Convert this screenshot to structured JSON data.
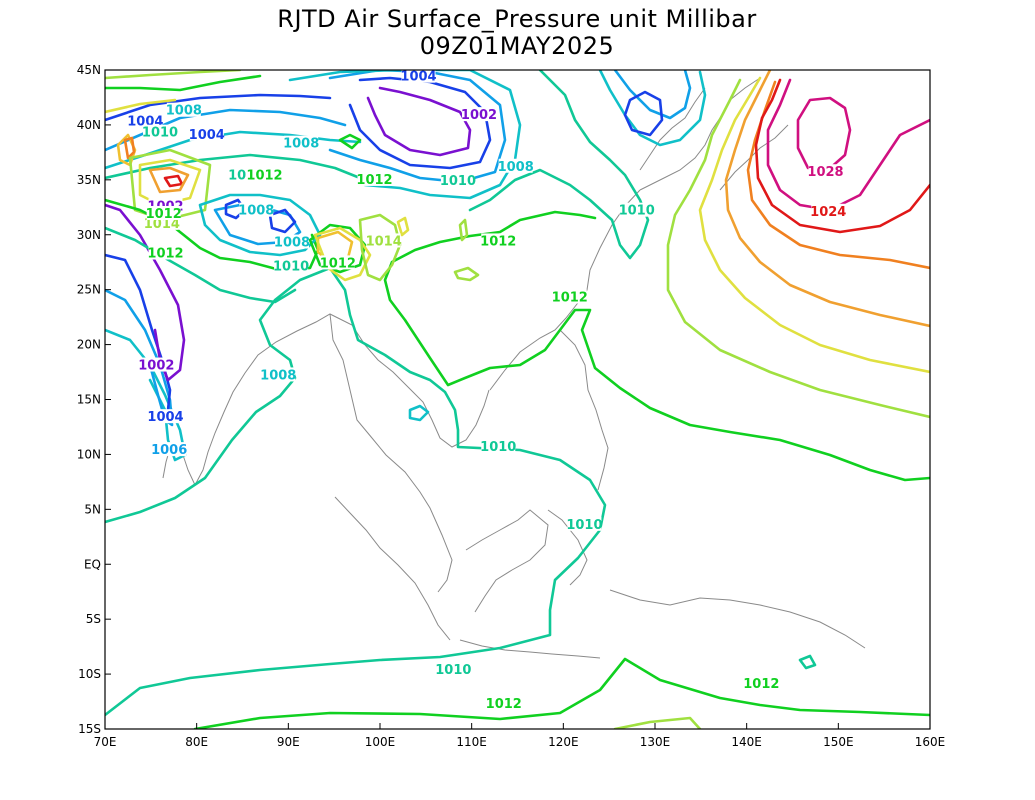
{
  "title": {
    "line1": "RJTD Air Surface_Pressure unit Millibar",
    "line2": "09Z01MAY2025"
  },
  "axes": {
    "x_ticks": [
      "70E",
      "80E",
      "90E",
      "100E",
      "110E",
      "120E",
      "130E",
      "140E",
      "150E",
      "160E"
    ],
    "y_ticks": [
      "45N",
      "40N",
      "35N",
      "30N",
      "25N",
      "20N",
      "15N",
      "10N",
      "5N",
      "EQ",
      "5S",
      "10S",
      "15S"
    ],
    "lon_range": [
      70,
      160
    ],
    "lat_range": [
      -15,
      45
    ]
  },
  "contour_colors": {
    "1002": "#7a10d0",
    "1004": "#1840e8",
    "1006": "#10a0e8",
    "1008": "#10c0c8",
    "1010": "#10c896",
    "1012": "#10d020",
    "1014": "#a0e040",
    "1016": "#e0e040",
    "1018": "#f0c030",
    "1020": "#f0a030",
    "1022": "#f08020",
    "1024": "#e01818",
    "1026": "#e01060",
    "1028": "#d01080"
  },
  "contour_labels": [
    {
      "text": "1004",
      "lon": 81.1,
      "lat": 39.0,
      "level": "1004"
    },
    {
      "text": "1004",
      "lon": 74.4,
      "lat": 40.2,
      "level": "1004"
    },
    {
      "text": "1002",
      "lon": 76.6,
      "lat": 32.5,
      "level": "1002"
    },
    {
      "text": "1014",
      "lon": 76.2,
      "lat": 30.9,
      "level": "1014"
    },
    {
      "text": "1012",
      "lon": 76.4,
      "lat": 31.8,
      "level": "1012"
    },
    {
      "text": "1012",
      "lon": 76.6,
      "lat": 28.2,
      "level": "1012"
    },
    {
      "text": "1010",
      "lon": 76.0,
      "lat": 39.2,
      "level": "1010"
    },
    {
      "text": "1008",
      "lon": 78.6,
      "lat": 41.2,
      "level": "1008"
    },
    {
      "text": "1002",
      "lon": 110.8,
      "lat": 40.8,
      "level": "1002"
    },
    {
      "text": "1004",
      "lon": 104.2,
      "lat": 44.3,
      "level": "1004"
    },
    {
      "text": "1008",
      "lon": 91.4,
      "lat": 38.2,
      "level": "1008"
    },
    {
      "text": "1010",
      "lon": 85.4,
      "lat": 35.3,
      "level": "1010"
    },
    {
      "text": "1012",
      "lon": 87.4,
      "lat": 35.3,
      "level": "1012"
    },
    {
      "text": "1012",
      "lon": 99.4,
      "lat": 34.9,
      "level": "1012"
    },
    {
      "text": "1010",
      "lon": 108.5,
      "lat": 34.8,
      "level": "1010"
    },
    {
      "text": "1008",
      "lon": 114.8,
      "lat": 36.1,
      "level": "1008"
    },
    {
      "text": "1008",
      "lon": 86.5,
      "lat": 32.1,
      "level": "1008"
    },
    {
      "text": "1008",
      "lon": 90.4,
      "lat": 29.2,
      "level": "1008"
    },
    {
      "text": "1010",
      "lon": 90.3,
      "lat": 27.0,
      "level": "1010"
    },
    {
      "text": "1012",
      "lon": 95.4,
      "lat": 27.3,
      "level": "1012"
    },
    {
      "text": "1014",
      "lon": 100.4,
      "lat": 29.3,
      "level": "1014"
    },
    {
      "text": "1012",
      "lon": 112.9,
      "lat": 29.3,
      "level": "1012"
    },
    {
      "text": "1010",
      "lon": 128.0,
      "lat": 32.1,
      "level": "1010"
    },
    {
      "text": "1012",
      "lon": 120.7,
      "lat": 24.2,
      "level": "1012"
    },
    {
      "text": "1028",
      "lon": 148.6,
      "lat": 35.6,
      "level": "1028"
    },
    {
      "text": "1024",
      "lon": 148.9,
      "lat": 32.0,
      "level": "1024"
    },
    {
      "text": "1002",
      "lon": 75.6,
      "lat": 18.0,
      "level": "1002"
    },
    {
      "text": "1004",
      "lon": 76.6,
      "lat": 13.3,
      "level": "1004"
    },
    {
      "text": "1006",
      "lon": 77.0,
      "lat": 10.3,
      "level": "1006"
    },
    {
      "text": "1008",
      "lon": 88.9,
      "lat": 17.1,
      "level": "1008"
    },
    {
      "text": "1010",
      "lon": 112.9,
      "lat": 10.6,
      "level": "1010"
    },
    {
      "text": "1010",
      "lon": 122.3,
      "lat": 3.5,
      "level": "1010"
    },
    {
      "text": "1010",
      "lon": 108.0,
      "lat": -9.7,
      "level": "1010"
    },
    {
      "text": "1012",
      "lon": 113.5,
      "lat": -12.8,
      "level": "1012"
    },
    {
      "text": "1012",
      "lon": 141.6,
      "lat": -11.0,
      "level": "1012"
    }
  ]
}
